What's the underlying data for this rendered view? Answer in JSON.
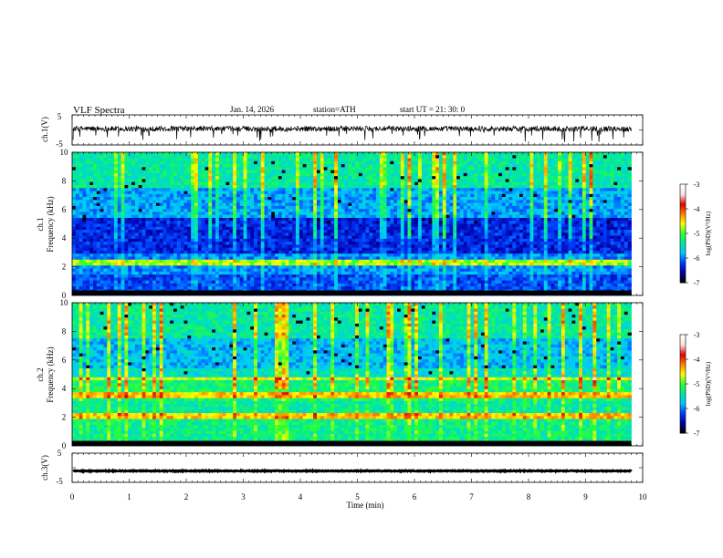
{
  "header": {
    "title": "VLF  Spectra",
    "date": "Jan.  14,  2026",
    "station": "station=ATH",
    "start": "start  UT  =   21: 30: 0"
  },
  "chart_data": [
    {
      "type": "line",
      "panel": "ch1-waveform",
      "ylabel": "ch.1(V)",
      "ylim": [
        -5,
        5
      ],
      "yticks": [
        "5",
        "-5"
      ],
      "xlim": [
        0,
        10
      ],
      "baseline": 0.4
    },
    {
      "type": "heatmap",
      "panel": "ch1-spectrogram",
      "ylabel": "ch.1\nFrequency (kHz)",
      "ylabel_line1": "ch.1",
      "ylabel_line2": "Frequency (kHz)",
      "ylim": [
        0,
        10
      ],
      "yticks": [
        "0",
        "2",
        "4",
        "6",
        "8",
        "10"
      ],
      "xlim": [
        0,
        10
      ],
      "data_end_minutes": 9.8,
      "colorbar": {
        "label": "log(PSD)(V²/Hz)",
        "range": [
          -7,
          -3
        ],
        "ticks": [
          "-3",
          "-4",
          "-5",
          "-6",
          "-7"
        ]
      }
    },
    {
      "type": "heatmap",
      "panel": "ch2-spectrogram",
      "ylabel": "ch.2\nFrequency (kHz)",
      "ylabel_line1": "ch.2",
      "ylabel_line2": "Frequency (kHz)",
      "ylim": [
        0,
        10
      ],
      "yticks": [
        "0",
        "2",
        "4",
        "6",
        "8",
        "10"
      ],
      "xlim": [
        0,
        10
      ],
      "data_end_minutes": 9.8,
      "colorbar": {
        "label": "log(PSD)(V²/Hz)",
        "range": [
          -7,
          -3
        ],
        "ticks": [
          "-3",
          "-4",
          "-5",
          "-6",
          "-7"
        ]
      }
    },
    {
      "type": "line",
      "panel": "ch3-waveform",
      "ylabel": "ch.3(V)",
      "ylim": [
        -5,
        5
      ],
      "yticks": [
        "5",
        "-5"
      ],
      "xlim": [
        0,
        10
      ],
      "baseline": -1.1
    }
  ],
  "xaxis": {
    "label": "Time  (min)",
    "ticks": [
      "0",
      "1",
      "2",
      "3",
      "4",
      "5",
      "6",
      "7",
      "8",
      "9",
      "10"
    ]
  },
  "colors": {
    "colormap": [
      "#000000",
      "#0000a8",
      "#0040ff",
      "#00c8ff",
      "#00e8a0",
      "#30ff30",
      "#ffff00",
      "#ff8000",
      "#e00000",
      "#ffe0e0",
      "#ffffff"
    ]
  }
}
